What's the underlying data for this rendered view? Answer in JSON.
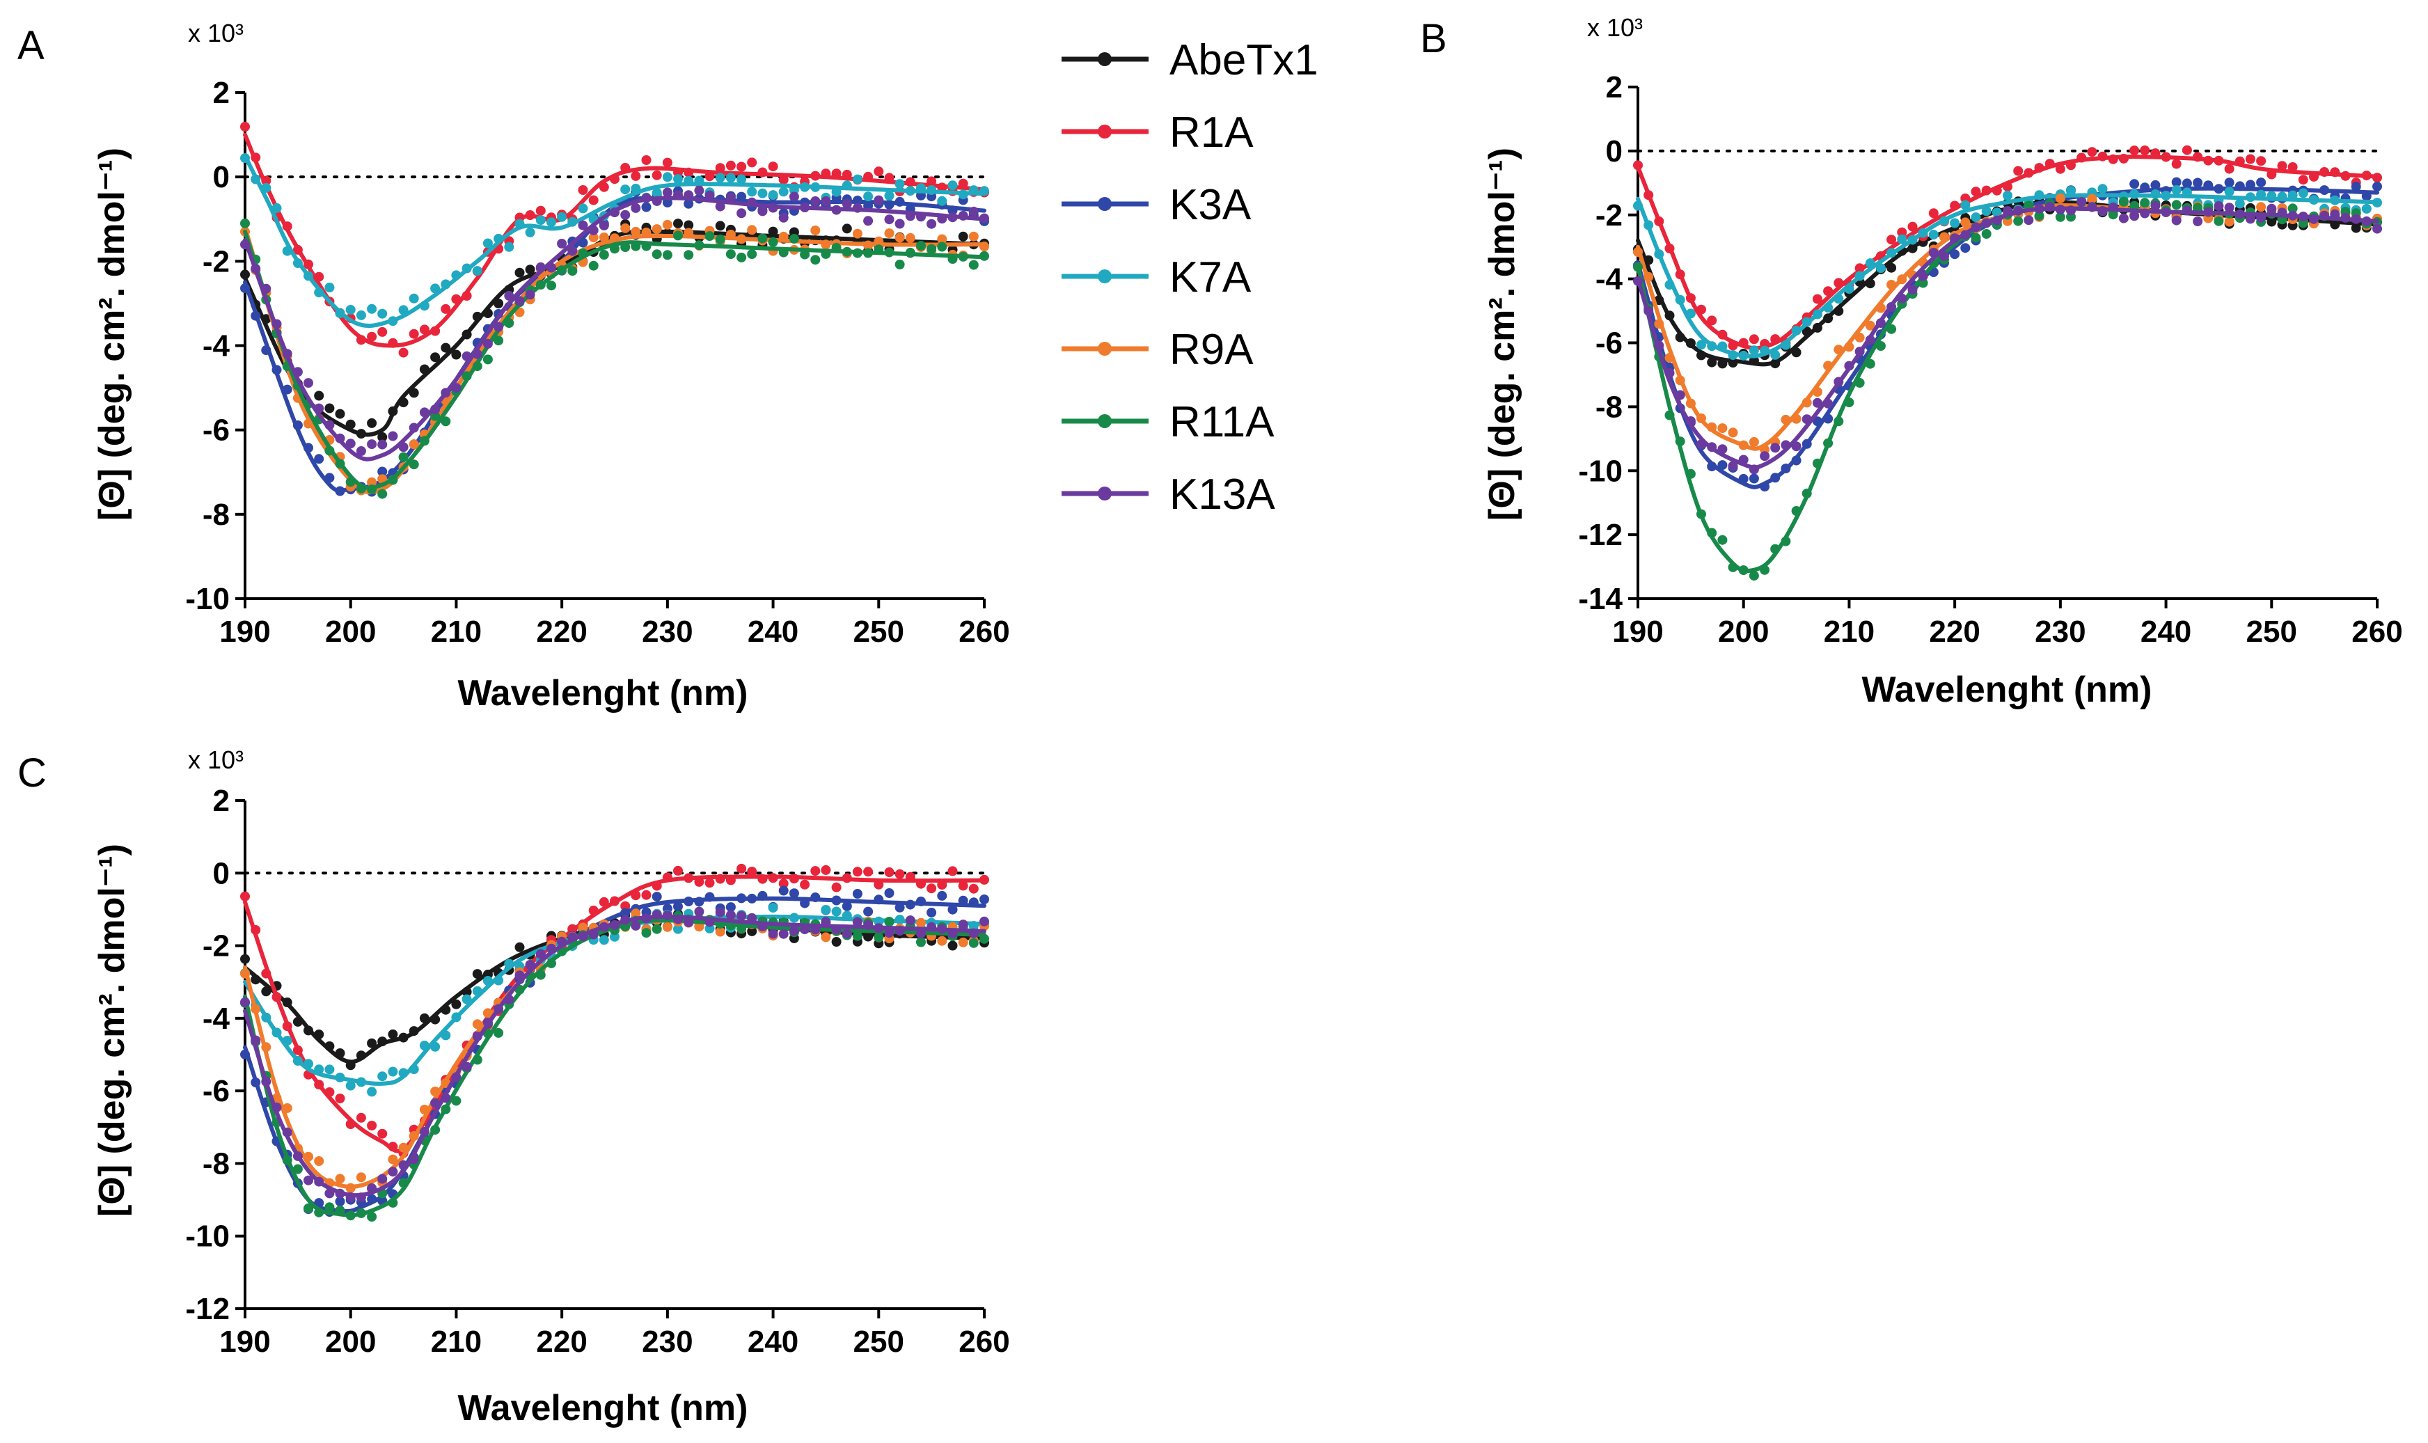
{
  "figure": {
    "y_axis_label": "[Θ] (deg. cm². dmol⁻¹)",
    "x_axis_label": "Wavelenght (nm)",
    "scale_label": "x 10³"
  },
  "legend": [
    {
      "name": "AbeTx1",
      "color": "#1a1a1a"
    },
    {
      "name": "R1A",
      "color": "#e8253a"
    },
    {
      "name": "K3A",
      "color": "#2f47a8"
    },
    {
      "name": "K7A",
      "color": "#20a9c0"
    },
    {
      "name": "R9A",
      "color": "#f07b2c"
    },
    {
      "name": "R11A",
      "color": "#178a4a"
    },
    {
      "name": "K13A",
      "color": "#6b3a9f"
    }
  ],
  "chart_data": [
    {
      "type": "scatter",
      "panel": "A",
      "xlabel": "Wavelenght (nm)",
      "ylabel": "[Θ] (deg. cm². dmol⁻¹)",
      "scale": "x 10³",
      "xlim": [
        190,
        260
      ],
      "ylim": [
        -10,
        2
      ],
      "xticks": [
        190,
        200,
        210,
        220,
        230,
        240,
        250,
        260
      ],
      "yticks": [
        -10,
        -8,
        -6,
        -4,
        -2,
        0,
        2
      ],
      "reference_line": 0,
      "series": [
        {
          "name": "AbeTx1",
          "color": "#1a1a1a",
          "x": [
            190,
            195,
            200,
            203,
            205,
            210,
            215,
            220,
            225,
            230,
            240,
            250,
            260
          ],
          "y": [
            -2.4,
            -5.0,
            -6.0,
            -6.0,
            -5.2,
            -4.0,
            -2.6,
            -2.1,
            -1.4,
            -1.3,
            -1.4,
            -1.5,
            -1.6
          ]
        },
        {
          "name": "R1A",
          "color": "#e8253a",
          "x": [
            190,
            192,
            195,
            200,
            204,
            208,
            212,
            216,
            220,
            224,
            228,
            235,
            245,
            255,
            260
          ],
          "y": [
            1.0,
            -0.2,
            -1.7,
            -3.6,
            -4.0,
            -3.6,
            -2.4,
            -1.0,
            -1.0,
            -0.1,
            0.2,
            0.1,
            0.0,
            -0.2,
            -0.3
          ]
        },
        {
          "name": "K3A",
          "color": "#2f47a8",
          "x": [
            190,
            195,
            198,
            200,
            203,
            206,
            210,
            215,
            220,
            225,
            230,
            240,
            250,
            260
          ],
          "y": [
            -2.5,
            -6.0,
            -7.3,
            -7.4,
            -7.2,
            -6.4,
            -4.8,
            -3.0,
            -2.0,
            -0.7,
            -0.5,
            -0.6,
            -0.6,
            -0.8
          ]
        },
        {
          "name": "K7A",
          "color": "#20a9c0",
          "x": [
            190,
            192,
            195,
            200,
            204,
            208,
            212,
            216,
            220,
            225,
            230,
            240,
            250,
            260
          ],
          "y": [
            0.5,
            -0.5,
            -2.0,
            -3.4,
            -3.4,
            -2.8,
            -2.0,
            -1.2,
            -1.2,
            -0.6,
            -0.2,
            -0.2,
            -0.3,
            -0.4
          ]
        },
        {
          "name": "R9A",
          "color": "#f07b2c",
          "x": [
            190,
            195,
            200,
            203,
            206,
            210,
            215,
            220,
            225,
            230,
            240,
            250,
            260
          ],
          "y": [
            -1.2,
            -5.2,
            -7.2,
            -7.4,
            -6.6,
            -5.0,
            -3.2,
            -2.0,
            -1.5,
            -1.4,
            -1.5,
            -1.6,
            -1.6
          ]
        },
        {
          "name": "R11A",
          "color": "#178a4a",
          "x": [
            190,
            195,
            200,
            203,
            206,
            210,
            215,
            220,
            225,
            230,
            240,
            250,
            260
          ],
          "y": [
            -1.3,
            -5.0,
            -7.1,
            -7.3,
            -6.6,
            -5.2,
            -3.3,
            -2.2,
            -1.6,
            -1.6,
            -1.7,
            -1.8,
            -1.9
          ]
        },
        {
          "name": "K13A",
          "color": "#6b3a9f",
          "x": [
            190,
            195,
            200,
            203,
            206,
            210,
            215,
            220,
            225,
            230,
            240,
            250,
            260
          ],
          "y": [
            -1.5,
            -4.8,
            -6.5,
            -6.6,
            -6.0,
            -4.8,
            -3.0,
            -1.8,
            -0.8,
            -0.5,
            -0.7,
            -0.8,
            -1.0
          ]
        }
      ]
    },
    {
      "type": "scatter",
      "panel": "B",
      "xlabel": "Wavelenght (nm)",
      "ylabel": "[Θ] (deg. cm². dmol⁻¹)",
      "scale": "x 10³",
      "xlim": [
        190,
        260
      ],
      "ylim": [
        -14,
        2
      ],
      "xticks": [
        190,
        200,
        210,
        220,
        230,
        240,
        250,
        260
      ],
      "yticks": [
        -14,
        -12,
        -10,
        -8,
        -6,
        -4,
        -2,
        0,
        2
      ],
      "reference_line": 0,
      "series": [
        {
          "name": "AbeTx1",
          "color": "#1a1a1a",
          "x": [
            190,
            193,
            196,
            200,
            203,
            206,
            210,
            215,
            220,
            225,
            230,
            240,
            250,
            260
          ],
          "y": [
            -2.8,
            -5.2,
            -6.3,
            -6.6,
            -6.6,
            -5.8,
            -4.6,
            -3.2,
            -2.4,
            -1.8,
            -1.6,
            -1.9,
            -2.1,
            -2.3
          ]
        },
        {
          "name": "R1A",
          "color": "#e8253a",
          "x": [
            190,
            193,
            196,
            200,
            203,
            206,
            210,
            215,
            220,
            225,
            230,
            235,
            240,
            245,
            250,
            260
          ],
          "y": [
            -0.5,
            -3.0,
            -5.2,
            -6.1,
            -6.0,
            -5.2,
            -4.0,
            -2.8,
            -1.8,
            -1.0,
            -0.4,
            -0.2,
            -0.2,
            -0.3,
            -0.6,
            -0.8
          ]
        },
        {
          "name": "K3A",
          "color": "#2f47a8",
          "x": [
            190,
            193,
            196,
            200,
            202,
            205,
            210,
            215,
            220,
            225,
            230,
            240,
            250,
            260
          ],
          "y": [
            -3.5,
            -7.0,
            -9.4,
            -10.4,
            -10.4,
            -9.6,
            -7.2,
            -4.8,
            -3.0,
            -2.0,
            -1.5,
            -1.2,
            -1.2,
            -1.3
          ]
        },
        {
          "name": "K7A",
          "color": "#20a9c0",
          "x": [
            190,
            193,
            196,
            200,
            203,
            206,
            210,
            215,
            220,
            225,
            230,
            240,
            250,
            260
          ],
          "y": [
            -1.5,
            -4.0,
            -5.8,
            -6.4,
            -6.2,
            -5.4,
            -4.2,
            -3.0,
            -2.0,
            -1.6,
            -1.4,
            -1.4,
            -1.5,
            -1.6
          ]
        },
        {
          "name": "R9A",
          "color": "#f07b2c",
          "x": [
            190,
            193,
            196,
            200,
            202,
            205,
            210,
            215,
            220,
            225,
            230,
            240,
            250,
            260
          ],
          "y": [
            -3.0,
            -6.2,
            -8.4,
            -9.2,
            -9.2,
            -8.2,
            -6.0,
            -4.0,
            -2.6,
            -2.0,
            -1.7,
            -1.9,
            -2.0,
            -2.2
          ]
        },
        {
          "name": "R11A",
          "color": "#178a4a",
          "x": [
            190,
            193,
            196,
            199,
            201,
            203,
            206,
            210,
            215,
            220,
            225,
            230,
            240,
            250,
            260
          ],
          "y": [
            -3.6,
            -8.0,
            -11.4,
            -12.9,
            -13.1,
            -12.6,
            -10.8,
            -7.6,
            -4.8,
            -2.9,
            -2.0,
            -1.8,
            -1.9,
            -2.0,
            -2.2
          ]
        },
        {
          "name": "K13A",
          "color": "#6b3a9f",
          "x": [
            190,
            193,
            196,
            200,
            202,
            205,
            210,
            215,
            220,
            225,
            230,
            240,
            250,
            260
          ],
          "y": [
            -4.0,
            -7.2,
            -9.0,
            -9.8,
            -9.8,
            -9.0,
            -6.8,
            -4.4,
            -2.8,
            -2.0,
            -1.8,
            -1.9,
            -2.0,
            -2.2
          ]
        }
      ]
    },
    {
      "type": "scatter",
      "panel": "C",
      "xlabel": "Wavelenght (nm)",
      "ylabel": "[Θ] (deg. cm². dmol⁻¹)",
      "scale": "x 10³",
      "xlim": [
        190,
        260
      ],
      "ylim": [
        -12,
        2
      ],
      "xticks": [
        190,
        200,
        210,
        220,
        230,
        240,
        250,
        260
      ],
      "yticks": [
        -12,
        -10,
        -8,
        -6,
        -4,
        -2,
        0,
        2
      ],
      "reference_line": 0,
      "series": [
        {
          "name": "AbeTx1",
          "color": "#1a1a1a",
          "x": [
            190,
            194,
            197,
            200,
            203,
            206,
            210,
            215,
            220,
            225,
            230,
            240,
            250,
            260
          ],
          "y": [
            -2.6,
            -3.6,
            -4.6,
            -5.2,
            -4.7,
            -4.4,
            -3.4,
            -2.4,
            -1.8,
            -1.4,
            -1.3,
            -1.5,
            -1.7,
            -1.8
          ]
        },
        {
          "name": "R1A",
          "color": "#e8253a",
          "x": [
            190,
            193,
            196,
            200,
            203,
            205,
            208,
            212,
            216,
            220,
            225,
            230,
            240,
            250,
            260
          ],
          "y": [
            -0.8,
            -3.4,
            -5.4,
            -6.8,
            -7.4,
            -7.6,
            -6.4,
            -4.4,
            -2.8,
            -1.8,
            -0.8,
            -0.2,
            -0.1,
            -0.2,
            -0.2
          ]
        },
        {
          "name": "K3A",
          "color": "#2f47a8",
          "x": [
            190,
            193,
            196,
            199,
            201,
            204,
            208,
            212,
            216,
            220,
            225,
            230,
            240,
            250,
            260
          ],
          "y": [
            -4.8,
            -7.4,
            -9.0,
            -9.3,
            -9.2,
            -8.6,
            -6.6,
            -4.6,
            -3.0,
            -2.0,
            -1.2,
            -0.8,
            -0.7,
            -0.8,
            -0.9
          ]
        },
        {
          "name": "K7A",
          "color": "#20a9c0",
          "x": [
            190,
            193,
            196,
            200,
            203,
            205,
            208,
            212,
            216,
            220,
            225,
            230,
            240,
            250,
            260
          ],
          "y": [
            -3.0,
            -4.4,
            -5.4,
            -5.7,
            -5.8,
            -5.6,
            -4.6,
            -3.4,
            -2.4,
            -1.9,
            -1.5,
            -1.3,
            -1.2,
            -1.3,
            -1.4
          ]
        },
        {
          "name": "R9A",
          "color": "#f07b2c",
          "x": [
            190,
            193,
            196,
            199,
            202,
            205,
            208,
            212,
            216,
            220,
            225,
            230,
            240,
            250,
            260
          ],
          "y": [
            -2.6,
            -6.0,
            -8.0,
            -8.6,
            -8.5,
            -7.8,
            -6.2,
            -4.4,
            -3.0,
            -2.0,
            -1.4,
            -1.3,
            -1.5,
            -1.6,
            -1.7
          ]
        },
        {
          "name": "R11A",
          "color": "#178a4a",
          "x": [
            190,
            193,
            196,
            199,
            202,
            205,
            208,
            212,
            216,
            220,
            225,
            230,
            240,
            250,
            260
          ],
          "y": [
            -3.4,
            -7.0,
            -9.0,
            -9.4,
            -9.3,
            -8.7,
            -7.0,
            -5.0,
            -3.3,
            -2.2,
            -1.5,
            -1.3,
            -1.5,
            -1.6,
            -1.7
          ]
        },
        {
          "name": "K13A",
          "color": "#6b3a9f",
          "x": [
            190,
            193,
            196,
            199,
            202,
            205,
            208,
            212,
            216,
            220,
            225,
            230,
            240,
            250,
            260
          ],
          "y": [
            -3.8,
            -6.6,
            -8.2,
            -8.8,
            -8.8,
            -8.2,
            -6.6,
            -4.6,
            -3.0,
            -2.0,
            -1.4,
            -1.2,
            -1.4,
            -1.5,
            -1.6
          ]
        }
      ]
    }
  ]
}
